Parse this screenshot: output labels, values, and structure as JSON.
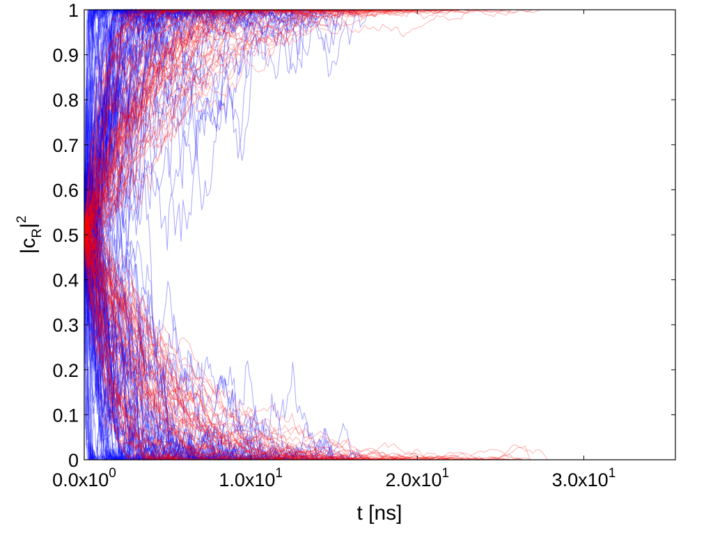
{
  "chart_data": {
    "type": "line",
    "title": "",
    "xlabel": "t [ns]",
    "ylabel": {
      "base": "|c",
      "subscript": "R",
      "bar": "|",
      "superscript": "2"
    },
    "xlim": [
      0,
      35.5
    ],
    "ylim": [
      0,
      1
    ],
    "x_ticks": [
      {
        "value": 0,
        "mantissa": "0.0x10",
        "exponent": "0"
      },
      {
        "value": 10,
        "mantissa": "1.0x10",
        "exponent": "1"
      },
      {
        "value": 20,
        "mantissa": "2.0x10",
        "exponent": "1"
      },
      {
        "value": 30,
        "mantissa": "3.0x10",
        "exponent": "1"
      }
    ],
    "y_ticks": [
      "0",
      "0.1",
      "0.2",
      "0.3",
      "0.4",
      "0.5",
      "0.6",
      "0.7",
      "0.8",
      "0.9",
      "1"
    ],
    "grid": false,
    "legend": "none",
    "series_groups": [
      {
        "color": "#0000ff",
        "opacity": 0.35,
        "n_trajectories": 150,
        "initial_value": 0.5,
        "final_values": [
          0,
          1
        ],
        "collapse_time_range_ns": [
          0.5,
          17
        ]
      },
      {
        "color": "#ff0000",
        "opacity": 0.3,
        "n_trajectories": 140,
        "initial_value": 0.5,
        "final_values": [
          0,
          1
        ],
        "collapse_time_range_ns": [
          5,
          28
        ]
      }
    ]
  }
}
